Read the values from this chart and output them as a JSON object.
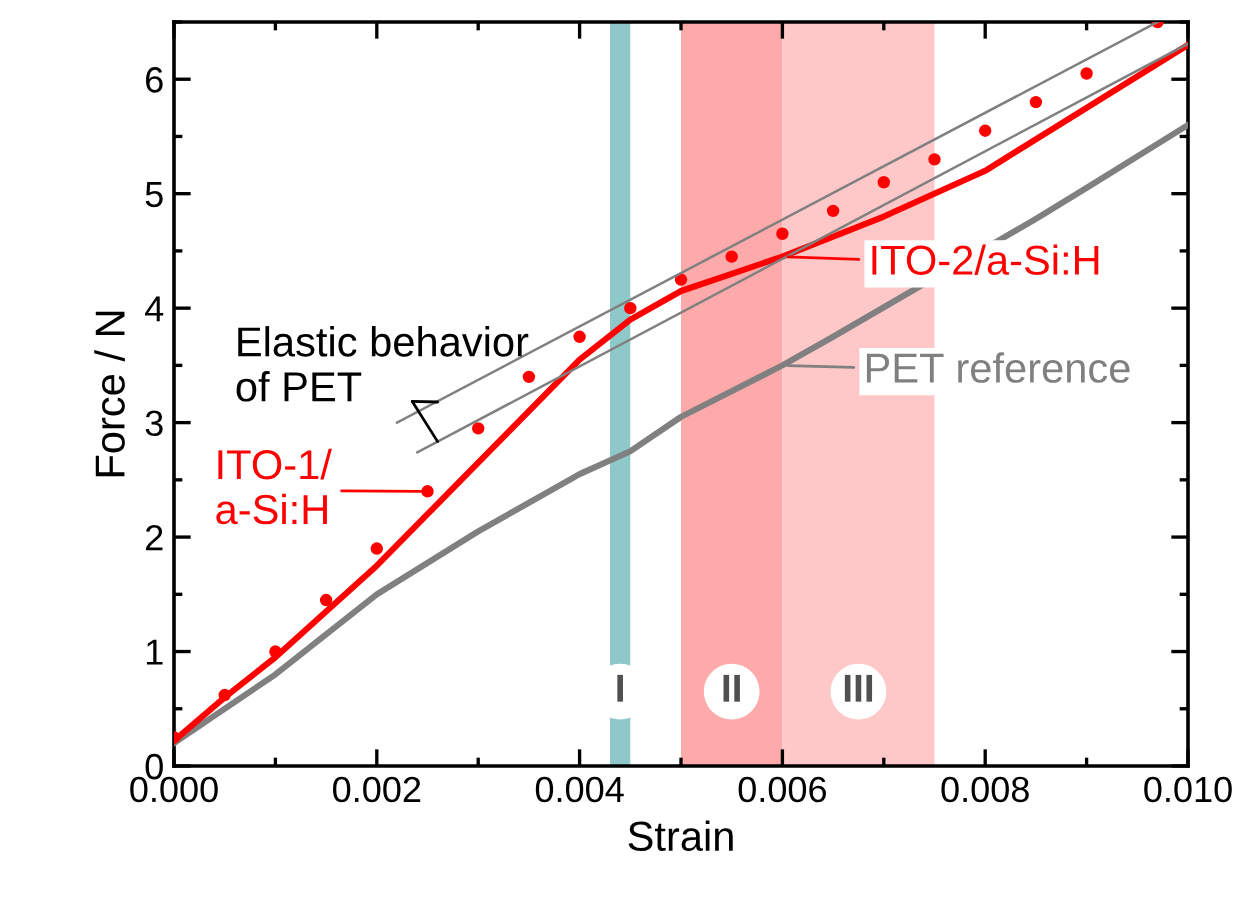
{
  "chart_data": {
    "type": "line",
    "xlabel": "Strain",
    "ylabel": "Force / N",
    "xlim": [
      0,
      0.01
    ],
    "ylim": [
      0,
      6.5
    ],
    "xticks": [
      {
        "value": 0,
        "label": "0.000"
      },
      {
        "value": 0.002,
        "label": "0.002"
      },
      {
        "value": 0.004,
        "label": "0.004"
      },
      {
        "value": 0.006,
        "label": "0.006"
      },
      {
        "value": 0.008,
        "label": "0.008"
      },
      {
        "value": 0.01,
        "label": "0.010"
      }
    ],
    "yticks": [
      0,
      1,
      2,
      3,
      4,
      5,
      6
    ],
    "grid": false,
    "series": [
      {
        "name": "PET reference",
        "color": "#808080",
        "line_style": "solid",
        "marker": "none",
        "x": [
          0,
          0.0005,
          0.001,
          0.0015,
          0.002,
          0.003,
          0.004,
          0.0045,
          0.005,
          0.006,
          0.0065,
          0.0085,
          0.009,
          0.01
        ],
        "values": [
          0.2,
          0.5,
          0.8,
          1.15,
          1.5,
          2.05,
          2.55,
          2.75,
          3.05,
          3.5,
          3.75,
          4.78,
          5.05,
          5.6
        ]
      },
      {
        "name": "ITO-2/a-Si:H",
        "color": "#ff0000",
        "line_style": "solid",
        "marker": "none",
        "x": [
          0,
          0.0005,
          0.001,
          0.0015,
          0.002,
          0.0025,
          0.003,
          0.0035,
          0.004,
          0.0045,
          0.005,
          0.0055,
          0.006,
          0.007,
          0.008,
          0.009,
          0.01
        ],
        "values": [
          0.22,
          0.6,
          0.95,
          1.35,
          1.75,
          2.2,
          2.65,
          3.1,
          3.55,
          3.9,
          4.15,
          4.3,
          4.45,
          4.8,
          5.2,
          5.75,
          6.3
        ]
      },
      {
        "name": "ITO-1/\na-Si:H",
        "type": "scatter",
        "color": "#ff0000",
        "marker": "circle",
        "x": [
          0,
          0.0005,
          0.001,
          0.0015,
          0.002,
          0.0025,
          0.003,
          0.0035,
          0.004,
          0.0045,
          0.005,
          0.0055,
          0.006,
          0.0065,
          0.007,
          0.0075,
          0.008,
          0.0085,
          0.009,
          0.0097
        ],
        "values": [
          0.25,
          0.62,
          1.0,
          1.45,
          1.9,
          2.4,
          2.95,
          3.4,
          3.75,
          4.0,
          4.25,
          4.45,
          4.65,
          4.85,
          5.1,
          5.3,
          5.55,
          5.8,
          6.05,
          6.5
        ]
      },
      {
        "color": "#808080",
        "line_style": "solid",
        "marker": "none",
        "x": [
          0.0022,
          0.0097
        ],
        "values": [
          3.0,
          6.5
        ]
      },
      {
        "color": "#808080",
        "line_style": "solid",
        "marker": "none",
        "x": [
          0.0024,
          0.01
        ],
        "values": [
          2.74,
          6.31
        ]
      }
    ],
    "bands": [
      {
        "axis": "x",
        "from": 0.0043,
        "to": 0.0045,
        "label": "I",
        "color": "#8fc8c8"
      },
      {
        "axis": "x",
        "from": 0.005,
        "to": 0.006,
        "label": "II",
        "color": "#ffaaaa"
      },
      {
        "axis": "x",
        "from": 0.006,
        "to": 0.0075,
        "label": "III",
        "color": "#ffc8c8"
      }
    ],
    "annotations": [
      {
        "text": "Elastic behavior\nof PET",
        "x": 0.0026,
        "y": 3.18
      }
    ]
  }
}
